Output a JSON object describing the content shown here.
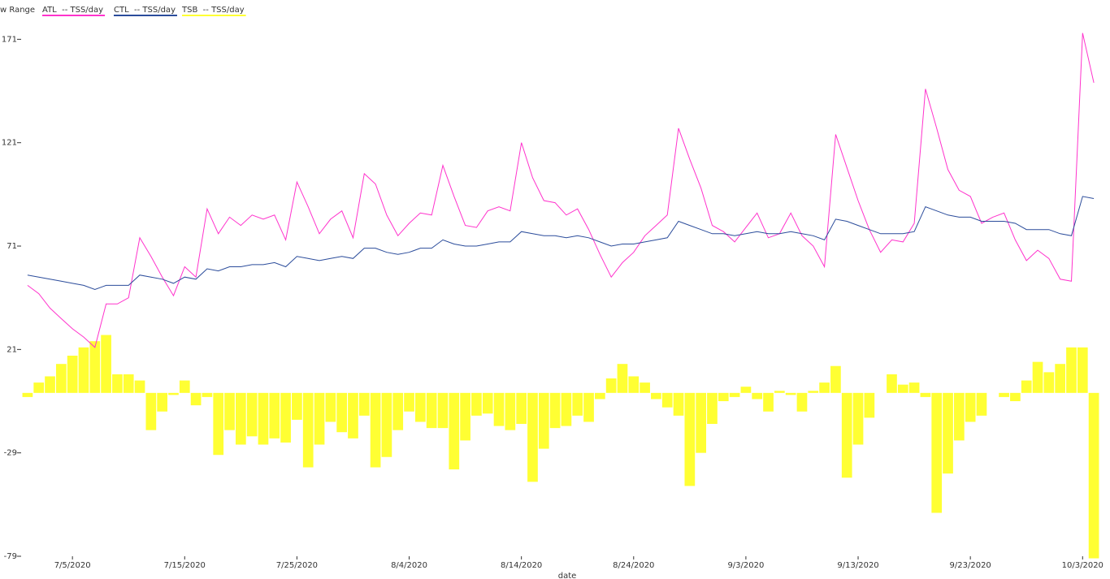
{
  "chart_data": {
    "type": "combo",
    "range_label": "w Range",
    "x_label": "date",
    "x": [
      "7/1/2020",
      "7/2/2020",
      "7/3/2020",
      "7/4/2020",
      "7/5/2020",
      "7/6/2020",
      "7/7/2020",
      "7/8/2020",
      "7/9/2020",
      "7/10/2020",
      "7/11/2020",
      "7/12/2020",
      "7/13/2020",
      "7/14/2020",
      "7/15/2020",
      "7/16/2020",
      "7/17/2020",
      "7/18/2020",
      "7/19/2020",
      "7/20/2020",
      "7/21/2020",
      "7/22/2020",
      "7/23/2020",
      "7/24/2020",
      "7/25/2020",
      "7/26/2020",
      "7/27/2020",
      "7/28/2020",
      "7/29/2020",
      "7/30/2020",
      "7/31/2020",
      "8/1/2020",
      "8/2/2020",
      "8/3/2020",
      "8/4/2020",
      "8/5/2020",
      "8/6/2020",
      "8/7/2020",
      "8/8/2020",
      "8/9/2020",
      "8/10/2020",
      "8/11/2020",
      "8/12/2020",
      "8/13/2020",
      "8/14/2020",
      "8/15/2020",
      "8/16/2020",
      "8/17/2020",
      "8/18/2020",
      "8/19/2020",
      "8/20/2020",
      "8/21/2020",
      "8/22/2020",
      "8/23/2020",
      "8/24/2020",
      "8/25/2020",
      "8/26/2020",
      "8/27/2020",
      "8/28/2020",
      "8/29/2020",
      "8/30/2020",
      "8/31/2020",
      "9/1/2020",
      "9/2/2020",
      "9/3/2020",
      "9/4/2020",
      "9/5/2020",
      "9/6/2020",
      "9/7/2020",
      "9/8/2020",
      "9/9/2020",
      "9/10/2020",
      "9/11/2020",
      "9/12/2020",
      "9/13/2020",
      "9/14/2020",
      "9/15/2020",
      "9/16/2020",
      "9/17/2020",
      "9/18/2020",
      "9/19/2020",
      "9/20/2020",
      "9/21/2020",
      "9/22/2020",
      "9/23/2020",
      "9/24/2020",
      "9/25/2020",
      "9/26/2020",
      "9/27/2020",
      "9/28/2020",
      "9/29/2020",
      "9/30/2020",
      "10/1/2020",
      "10/2/2020",
      "10/3/2020",
      "10/4/2020"
    ],
    "xticks": [
      "7/5/2020",
      "7/15/2020",
      "7/25/2020",
      "8/4/2020",
      "8/14/2020",
      "8/24/2020",
      "9/3/2020",
      "9/13/2020",
      "9/23/2020",
      "10/3/2020"
    ],
    "ylim": [
      -79,
      190
    ],
    "yticks": [
      -79,
      -29,
      21,
      71,
      121,
      171
    ],
    "series": [
      {
        "name": "ATL  -- TSS/day",
        "type": "line",
        "color": "#ff33cc",
        "values": [
          52,
          48,
          41,
          36,
          31,
          27,
          22,
          43,
          43,
          46,
          75,
          66,
          56,
          47,
          61,
          56,
          89,
          77,
          85,
          81,
          86,
          84,
          86,
          74,
          102,
          90,
          77,
          84,
          88,
          75,
          106,
          101,
          86,
          76,
          82,
          87,
          86,
          110,
          95,
          81,
          80,
          88,
          90,
          88,
          121,
          104,
          93,
          92,
          86,
          89,
          79,
          67,
          56,
          63,
          68,
          76,
          81,
          86,
          128,
          113,
          99,
          81,
          78,
          73,
          80,
          87,
          75,
          77,
          87,
          76,
          71,
          61,
          125,
          109,
          93,
          79,
          68,
          74,
          73,
          82,
          147,
          128,
          108,
          98,
          95,
          82,
          85,
          87,
          74,
          64,
          69,
          65,
          55,
          54,
          174,
          150
        ]
      },
      {
        "name": "CTL  -- TSS/day",
        "type": "line",
        "color": "#2b4c9b",
        "values": [
          57,
          56,
          55,
          54,
          53,
          52,
          50,
          52,
          52,
          52,
          57,
          56,
          55,
          53,
          56,
          55,
          60,
          59,
          61,
          61,
          62,
          62,
          63,
          61,
          66,
          65,
          64,
          65,
          66,
          65,
          70,
          70,
          68,
          67,
          68,
          70,
          70,
          74,
          72,
          71,
          71,
          72,
          73,
          73,
          78,
          77,
          76,
          76,
          75,
          76,
          75,
          73,
          71,
          72,
          72,
          73,
          74,
          75,
          83,
          81,
          79,
          77,
          77,
          76,
          77,
          78,
          77,
          77,
          78,
          77,
          76,
          74,
          84,
          83,
          81,
          79,
          77,
          77,
          77,
          78,
          90,
          88,
          86,
          85,
          85,
          83,
          83,
          83,
          82,
          79,
          79,
          79,
          77,
          76,
          95,
          94
        ]
      },
      {
        "name": "TSB  -- TSS/day",
        "type": "bar",
        "color": "#ffff33",
        "values": [
          -2,
          5,
          8,
          14,
          18,
          22,
          25,
          28,
          9,
          9,
          6,
          -18,
          -9,
          -1,
          6,
          -6,
          -2,
          -30,
          -18,
          -25,
          -21,
          -25,
          -22,
          -24,
          -13,
          -36,
          -25,
          -14,
          -19,
          -22,
          -11,
          -36,
          -31,
          -18,
          -9,
          -14,
          -17,
          -17,
          -37,
          -23,
          -11,
          -10,
          -16,
          -18,
          -15,
          -43,
          -27,
          -17,
          -16,
          -11,
          -14,
          -3,
          7,
          14,
          8,
          5,
          -3,
          -7,
          -11,
          -45,
          -29,
          -15,
          -4,
          -2,
          3,
          -3,
          -9,
          1,
          -1,
          -9,
          1,
          5,
          13,
          -41,
          -25,
          -12,
          0,
          9,
          4,
          5,
          -2,
          -58,
          -39,
          -23,
          -14,
          -11,
          0,
          -2,
          -4,
          6,
          15,
          10,
          14,
          22,
          22,
          -80
        ]
      }
    ]
  }
}
